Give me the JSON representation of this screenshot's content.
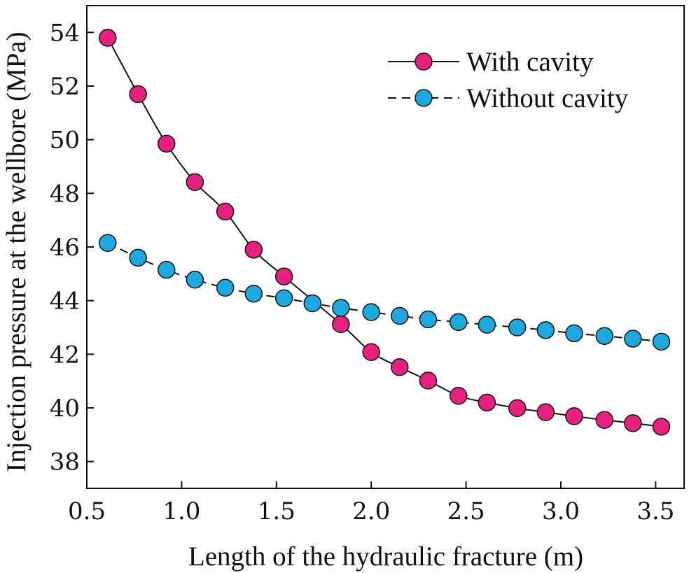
{
  "chart_data": {
    "type": "line",
    "title": "",
    "xlabel": "Length of the hydraulic fracture (m)",
    "ylabel": "Injection pressure at the wellbore (MPa)",
    "xlim": [
      0.5,
      3.65
    ],
    "ylim": [
      37,
      55
    ],
    "xticks": [
      0.5,
      1.0,
      1.5,
      2.0,
      2.5,
      3.0,
      3.5
    ],
    "xtick_labels": [
      "0.5",
      "1.0",
      "1.5",
      "2.0",
      "2.5",
      "3.0",
      "3.5"
    ],
    "yticks": [
      38,
      40,
      42,
      44,
      46,
      48,
      50,
      52,
      54
    ],
    "ytick_labels": [
      "38",
      "40",
      "42",
      "44",
      "46",
      "48",
      "50",
      "52",
      "54"
    ],
    "grid": false,
    "legend_position": "top-right",
    "x": [
      0.61,
      0.77,
      0.92,
      1.07,
      1.23,
      1.38,
      1.54,
      1.69,
      1.84,
      2.0,
      2.15,
      2.3,
      2.46,
      2.61,
      2.77,
      2.92,
      3.07,
      3.23,
      3.38,
      3.53
    ],
    "series": [
      {
        "name": "With cavity",
        "line_style": "solid",
        "marker_color": "#e8207f",
        "x": [
          0.61,
          0.77,
          0.92,
          1.07,
          1.23,
          1.38,
          1.54,
          1.84,
          2.0,
          2.15,
          2.3,
          2.46,
          2.61,
          2.77,
          2.92,
          3.07,
          3.23,
          3.38,
          3.53
        ],
        "values": [
          53.8,
          51.7,
          49.85,
          48.42,
          47.32,
          45.9,
          44.9,
          43.12,
          42.08,
          41.52,
          41.02,
          40.45,
          40.2,
          39.99,
          39.84,
          39.69,
          39.55,
          39.43,
          39.3
        ]
      },
      {
        "name": "Without cavity",
        "line_style": "dashed",
        "marker_color": "#1ea8e0",
        "x": [
          0.61,
          0.77,
          0.92,
          1.07,
          1.23,
          1.38,
          1.54,
          1.69,
          1.84,
          2.0,
          2.15,
          2.3,
          2.46,
          2.61,
          2.77,
          2.92,
          3.07,
          3.23,
          3.38,
          3.53
        ],
        "values": [
          46.15,
          45.6,
          45.15,
          44.78,
          44.48,
          44.26,
          44.09,
          43.9,
          43.73,
          43.57,
          43.43,
          43.3,
          43.2,
          43.1,
          43.0,
          42.9,
          42.78,
          42.68,
          42.58,
          42.47
        ]
      }
    ]
  }
}
